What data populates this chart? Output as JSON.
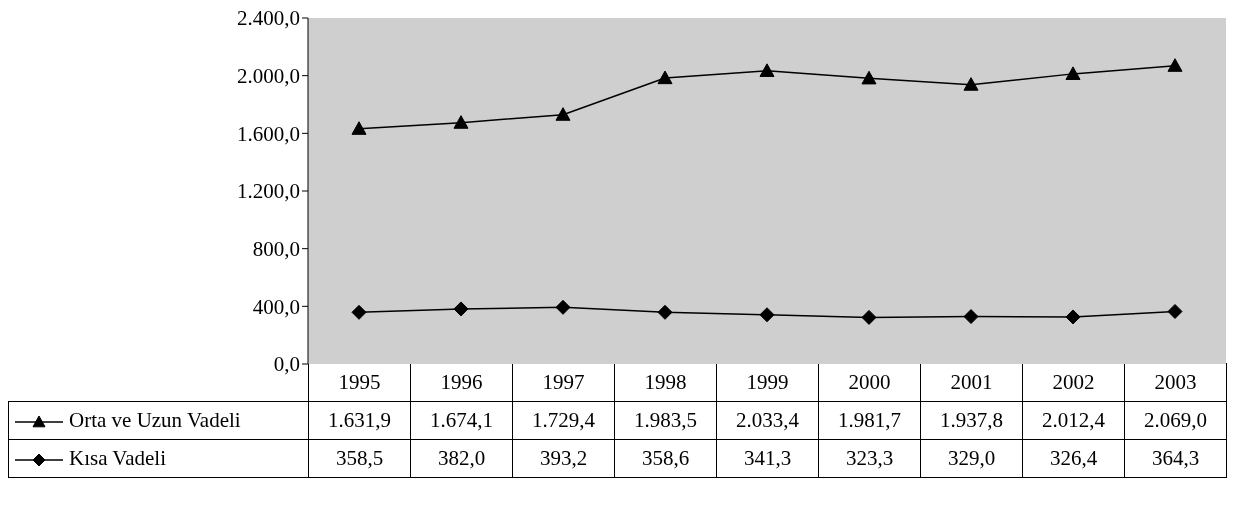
{
  "chart_data": {
    "type": "line",
    "categories": [
      "1995",
      "1996",
      "1997",
      "1998",
      "1999",
      "2000",
      "2001",
      "2002",
      "2003"
    ],
    "series": [
      {
        "name": "Orta ve Uzun Vadeli",
        "color": "#000000",
        "marker": "triangle",
        "values": [
          1631.9,
          1674.1,
          1729.4,
          1983.5,
          2033.4,
          1981.7,
          1937.8,
          2012.4,
          2069.0
        ],
        "value_labels": [
          "1.631,9",
          "1.674,1",
          "1.729,4",
          "1.983,5",
          "2.033,4",
          "1.981,7",
          "1.937,8",
          "2.012,4",
          "2.069,0"
        ]
      },
      {
        "name": "Kısa Vadeli",
        "color": "#000000",
        "marker": "diamond",
        "values": [
          358.5,
          382.0,
          393.2,
          358.6,
          341.3,
          323.3,
          329.0,
          326.4,
          364.3
        ],
        "value_labels": [
          "358,5",
          "382,0",
          "393,2",
          "358,6",
          "341,3",
          "323,3",
          "329,0",
          "326,4",
          "364,3"
        ]
      }
    ],
    "ylim": [
      0,
      2400
    ],
    "yticks": [
      {
        "value": 0,
        "label": "0,0"
      },
      {
        "value": 400,
        "label": "400,0"
      },
      {
        "value": 800,
        "label": "800,0"
      },
      {
        "value": 1200,
        "label": "1.200,0"
      },
      {
        "value": 1600,
        "label": "1.600,0"
      },
      {
        "value": 2000,
        "label": "2.000,0"
      },
      {
        "value": 2400,
        "label": "2.400,0"
      }
    ],
    "legend": "bottom"
  }
}
